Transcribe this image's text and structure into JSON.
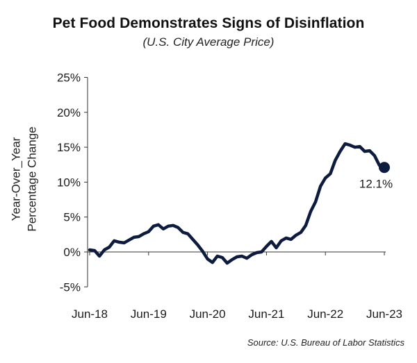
{
  "chart_data": {
    "type": "line",
    "title": "Pet Food Demonstrates Signs of Disinflation",
    "subtitle": "(U.S. City Average Price)",
    "ylabel_line1": "Year-Over_Year",
    "ylabel_line2": "Percentage Change",
    "xlabel": "",
    "source": "Source: U.S. Bureau of Labor Statistics",
    "ylim": [
      -5,
      25
    ],
    "yticks": [
      25,
      20,
      15,
      10,
      5,
      0,
      -5
    ],
    "ytick_labels": [
      "25%",
      "20%",
      "15%",
      "10%",
      "5%",
      "0%",
      "-5%"
    ],
    "xticks": [
      "Jun-18",
      "Jun-19",
      "Jun-20",
      "Jun-21",
      "Jun-22",
      "Jun-23"
    ],
    "grid": false,
    "series": [
      {
        "color": "#0d1b3e",
        "x": [
          "Jun-18",
          "Jul-18",
          "Aug-18",
          "Sep-18",
          "Oct-18",
          "Nov-18",
          "Dec-18",
          "Jan-19",
          "Feb-19",
          "Mar-19",
          "Apr-19",
          "May-19",
          "Jun-19",
          "Jul-19",
          "Aug-19",
          "Sep-19",
          "Oct-19",
          "Nov-19",
          "Dec-19",
          "Jan-20",
          "Feb-20",
          "Mar-20",
          "Apr-20",
          "May-20",
          "Jun-20",
          "Jul-20",
          "Aug-20",
          "Sep-20",
          "Oct-20",
          "Nov-20",
          "Dec-20",
          "Jan-21",
          "Feb-21",
          "Mar-21",
          "Apr-21",
          "May-21",
          "Jun-21",
          "Jul-21",
          "Aug-21",
          "Sep-21",
          "Oct-21",
          "Nov-21",
          "Dec-21",
          "Jan-22",
          "Feb-22",
          "Mar-22",
          "Apr-22",
          "May-22",
          "Jun-22",
          "Jul-22",
          "Aug-22",
          "Sep-22",
          "Oct-22",
          "Nov-22",
          "Dec-22",
          "Jan-23",
          "Feb-23",
          "Mar-23",
          "Apr-23",
          "May-23",
          "Jun-23"
        ],
        "values": [
          0.3,
          0.2,
          -0.6,
          0.3,
          0.7,
          1.6,
          1.4,
          1.3,
          1.7,
          2.1,
          2.2,
          2.6,
          2.9,
          3.7,
          3.9,
          3.3,
          3.7,
          3.8,
          3.5,
          2.8,
          2.6,
          1.8,
          1.0,
          0.1,
          -1.0,
          -1.5,
          -0.6,
          -0.8,
          -1.6,
          -1.1,
          -0.7,
          -0.6,
          -0.9,
          -0.4,
          -0.1,
          0.0,
          0.8,
          1.5,
          0.6,
          1.6,
          2.0,
          1.8,
          2.4,
          2.8,
          3.8,
          5.8,
          7.2,
          9.4,
          10.6,
          11.2,
          13.1,
          14.4,
          15.5,
          15.3,
          15.0,
          15.1,
          14.4,
          14.5,
          13.8,
          12.4,
          12.1
        ],
        "end_label": "12.1%"
      }
    ]
  }
}
